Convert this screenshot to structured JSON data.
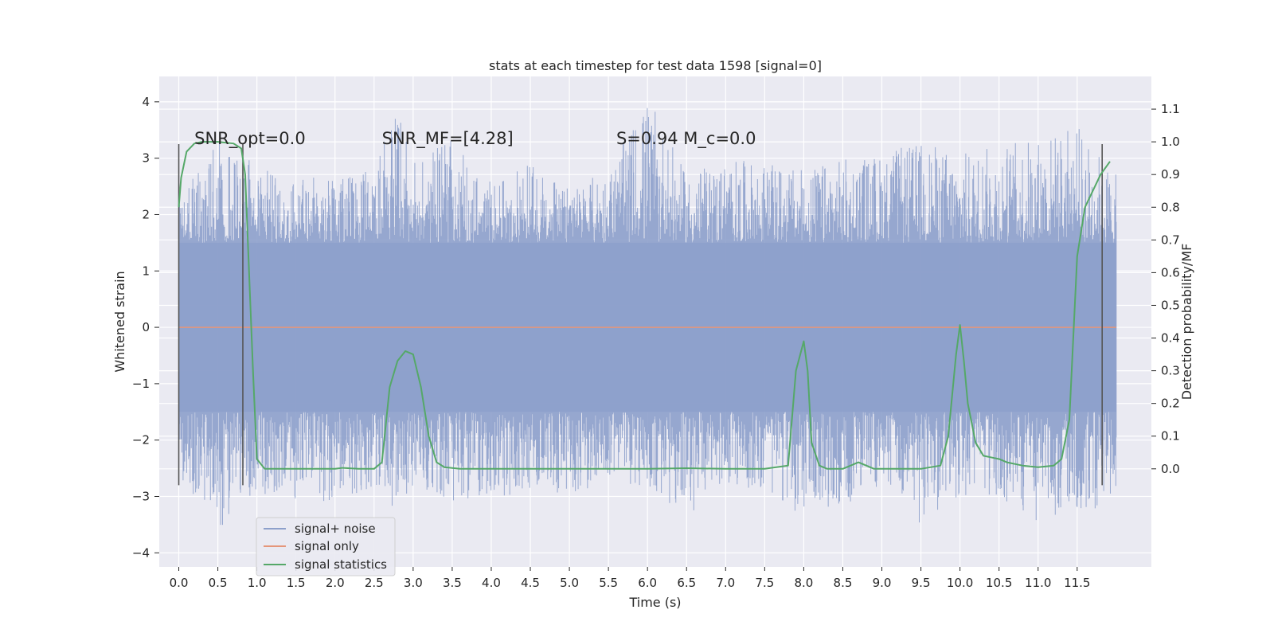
{
  "chart_data": {
    "type": "line",
    "title": "stats at each timestep for test data 1598 [signal=0]",
    "xlabel": "Time (s)",
    "ylabel": "Whitened strain",
    "ylabel_right": "Detection probability/MF",
    "xlim": [
      -0.25,
      12.45
    ],
    "ylim": [
      -4.25,
      4.45
    ],
    "ylim_right": [
      -0.3,
      1.2
    ],
    "x_ticks": [
      0.0,
      0.5,
      1.0,
      1.5,
      2.0,
      2.5,
      3.0,
      3.5,
      4.0,
      4.5,
      5.0,
      5.5,
      6.0,
      6.5,
      7.0,
      7.5,
      8.0,
      8.5,
      9.0,
      9.5,
      10.0,
      10.5,
      11.0,
      11.5
    ],
    "x_tick_labels": [
      "0.0",
      "0.5",
      "1.0",
      "1.5",
      "2.0",
      "2.5",
      "3.0",
      "3.5",
      "4.0",
      "4.5",
      "5.0",
      "5.5",
      "6.0",
      "6.5",
      "7.0",
      "7.5",
      "8.0",
      "8.5",
      "9.0",
      "9.5",
      "10.0",
      "10.5",
      "11.0",
      "11.5"
    ],
    "y_ticks": [
      -4,
      -3,
      -2,
      -1,
      0,
      1,
      2,
      3,
      4
    ],
    "y_tick_labels": [
      "−4",
      "−3",
      "−2",
      "−1",
      "0",
      "1",
      "2",
      "3",
      "4"
    ],
    "y_right_ticks": [
      0.0,
      0.1,
      0.2,
      0.3,
      0.4,
      0.5,
      0.6,
      0.7,
      0.8,
      0.9,
      1.0,
      1.1
    ],
    "y_right_tick_labels": [
      "0.0",
      "0.1",
      "0.2",
      "0.3",
      "0.4",
      "0.5",
      "0.6",
      "0.7",
      "0.8",
      "0.9",
      "1.0",
      "1.1"
    ],
    "grid": true,
    "legend_position": "lower-left",
    "annotations": [
      {
        "text": "SNR_opt=0.0",
        "x": 0.2,
        "y": 3.25
      },
      {
        "text": "SNR_MF=[4.28]",
        "x": 2.6,
        "y": 3.25
      },
      {
        "text": "S=0.94  M_c=0.0",
        "x": 5.6,
        "y": 3.25
      }
    ],
    "vertical_lines": [
      {
        "x": 0.0,
        "y0": -2.8,
        "y1": 3.25
      },
      {
        "x": 0.82,
        "y0": -2.8,
        "y1": 3.25
      },
      {
        "x": 11.82,
        "y0": -2.8,
        "y1": 3.25
      }
    ],
    "series": [
      {
        "name": "signal+ noise",
        "axis": "left",
        "color": "#8da0cb",
        "description_range": [
          0.0,
          12.0
        ],
        "envelope": {
          "x": [
            0.0,
            0.5,
            1.0,
            1.5,
            2.0,
            2.5,
            2.75,
            3.0,
            3.5,
            4.0,
            4.5,
            5.0,
            5.5,
            6.0,
            6.5,
            7.0,
            7.5,
            8.0,
            8.5,
            9.0,
            9.5,
            10.0,
            10.5,
            11.0,
            11.5,
            12.0
          ],
          "upper": [
            2.3,
            3.3,
            2.9,
            2.7,
            2.6,
            2.8,
            4.05,
            2.9,
            3.4,
            2.6,
            2.9,
            2.5,
            2.8,
            4.1,
            2.7,
            3.0,
            2.9,
            2.8,
            3.0,
            3.1,
            3.3,
            3.1,
            3.25,
            3.4,
            3.6,
            2.7
          ],
          "lower": [
            -2.6,
            -3.65,
            -3.0,
            -3.05,
            -3.15,
            -2.9,
            -3.25,
            -2.8,
            -3.15,
            -3.1,
            -2.9,
            -3.0,
            -2.7,
            -2.9,
            -3.4,
            -2.8,
            -2.9,
            -3.4,
            -3.2,
            -2.8,
            -3.55,
            -3.0,
            -3.2,
            -3.45,
            -3.3,
            -3.2
          ],
          "dense_upper": 1.5,
          "dense_lower": -1.5
        }
      },
      {
        "name": "signal only",
        "axis": "left",
        "color": "#e5967a",
        "x": [
          0.0,
          12.0
        ],
        "y": [
          0.0,
          0.0
        ]
      },
      {
        "name": "signal statistics",
        "axis": "right",
        "color": "#55a868",
        "x": [
          0.0,
          0.03,
          0.1,
          0.2,
          0.3,
          0.5,
          0.7,
          0.8,
          0.85,
          0.9,
          0.95,
          1.0,
          1.1,
          1.3,
          1.5,
          2.0,
          2.1,
          2.3,
          2.5,
          2.6,
          2.7,
          2.8,
          2.9,
          3.0,
          3.1,
          3.2,
          3.3,
          3.4,
          3.6,
          4.0,
          5.0,
          6.0,
          6.5,
          7.0,
          7.5,
          7.8,
          7.9,
          8.0,
          8.05,
          8.1,
          8.2,
          8.3,
          8.5,
          8.7,
          8.9,
          9.0,
          9.5,
          9.75,
          9.85,
          9.95,
          10.0,
          10.05,
          10.1,
          10.2,
          10.3,
          10.4,
          10.5,
          10.6,
          10.8,
          11.0,
          11.2,
          11.3,
          11.4,
          11.5,
          11.6,
          11.8,
          11.92
        ],
        "y": [
          0.8,
          0.89,
          0.97,
          0.995,
          1.0,
          1.0,
          0.995,
          0.98,
          0.9,
          0.6,
          0.3,
          0.03,
          0.0,
          0.0,
          0.0,
          0.0,
          0.003,
          0.0,
          0.0,
          0.02,
          0.25,
          0.33,
          0.36,
          0.35,
          0.25,
          0.1,
          0.02,
          0.005,
          0.0,
          0.0,
          0.0,
          0.0,
          0.002,
          0.0,
          0.0,
          0.01,
          0.3,
          0.39,
          0.3,
          0.08,
          0.01,
          0.0,
          0.0,
          0.02,
          0.0,
          0.0,
          0.0,
          0.01,
          0.1,
          0.35,
          0.44,
          0.33,
          0.2,
          0.08,
          0.04,
          0.035,
          0.03,
          0.02,
          0.01,
          0.005,
          0.01,
          0.03,
          0.15,
          0.65,
          0.8,
          0.9,
          0.94
        ]
      }
    ]
  }
}
